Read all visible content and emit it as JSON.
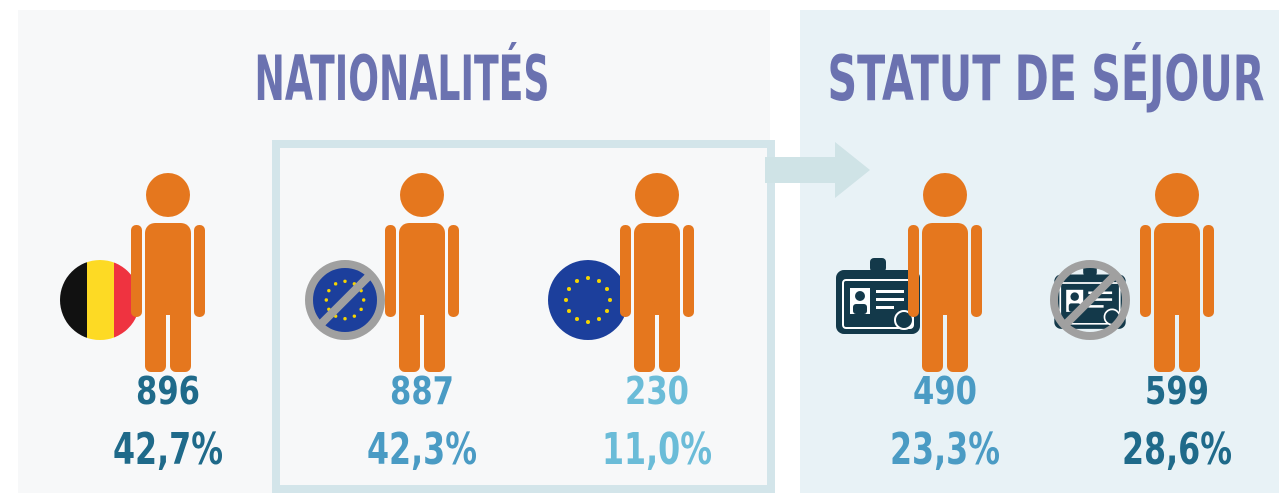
{
  "sections": [
    {
      "title": "NATIONALITÉS",
      "items": [
        {
          "count": "896",
          "percent": "42,7%"
        },
        {
          "count": "887",
          "percent": "42,3%"
        },
        {
          "count": "230",
          "percent": "11,0%"
        }
      ]
    },
    {
      "title": "STATUT DE SÉJOUR",
      "items": [
        {
          "count": "490",
          "percent": "23,3%"
        },
        {
          "count": "599",
          "percent": "28,6%"
        }
      ]
    }
  ]
}
